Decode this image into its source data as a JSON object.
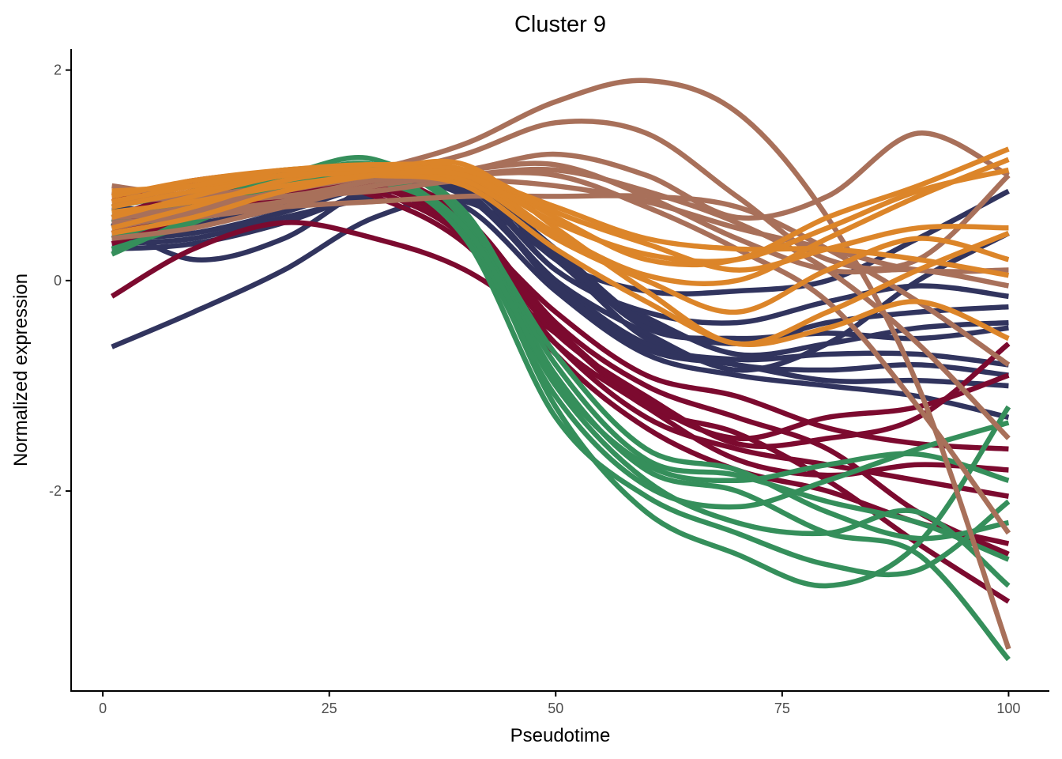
{
  "chart_data": {
    "type": "line",
    "title": "Cluster 9",
    "xlabel": "Pseudotime",
    "ylabel": "Normalized expression",
    "xlim": [
      -3.5,
      104.5
    ],
    "ylim": [
      -3.9,
      2.2
    ],
    "x_ticks": [
      0,
      25,
      50,
      75,
      100
    ],
    "y_ticks": [
      2,
      0,
      -2
    ],
    "x_tick_labels": [
      "0",
      "25",
      "50",
      "75",
      "100"
    ],
    "y_tick_labels": [
      "2",
      "0",
      "-2"
    ],
    "grid": false,
    "legend": "none",
    "x": [
      1,
      10,
      20,
      30,
      40,
      50,
      60,
      70,
      80,
      90,
      100
    ],
    "palette": {
      "blue": "#31345e",
      "crimson": "#7c0a2f",
      "green": "#358f5b",
      "brown": "#a8705a",
      "orange": "#dc8529"
    },
    "series": [
      {
        "name": "blue-1",
        "color": "#31345e",
        "values": [
          -0.63,
          -0.3,
          0.1,
          0.6,
          0.75,
          0.2,
          -0.55,
          -0.8,
          -0.85,
          -0.8,
          -0.9
        ]
      },
      {
        "name": "blue-2",
        "color": "#31345e",
        "values": [
          0.55,
          0.2,
          0.4,
          0.9,
          0.9,
          0.1,
          -0.35,
          -0.7,
          -0.6,
          -0.45,
          -0.4
        ]
      },
      {
        "name": "blue-3",
        "color": "#31345e",
        "values": [
          0.45,
          0.5,
          0.8,
          1.0,
          0.95,
          0.3,
          -0.4,
          -0.6,
          -0.4,
          -0.3,
          -0.25
        ]
      },
      {
        "name": "blue-4",
        "color": "#31345e",
        "values": [
          0.6,
          0.55,
          0.7,
          1.05,
          0.85,
          0.0,
          -0.6,
          -0.75,
          -0.7,
          -0.7,
          -0.8
        ]
      },
      {
        "name": "blue-5",
        "color": "#31345e",
        "values": [
          0.35,
          0.4,
          0.6,
          0.8,
          1.0,
          0.2,
          -0.1,
          -0.1,
          0.0,
          0.4,
          0.85
        ]
      },
      {
        "name": "blue-6",
        "color": "#31345e",
        "values": [
          0.5,
          0.6,
          0.75,
          0.85,
          0.7,
          -0.1,
          -0.7,
          -0.9,
          -1.0,
          -1.1,
          -1.3
        ]
      },
      {
        "name": "blue-7",
        "color": "#31345e",
        "values": [
          0.7,
          0.65,
          0.8,
          0.95,
          0.8,
          0.0,
          -0.5,
          -0.85,
          -0.6,
          0.0,
          0.45
        ]
      },
      {
        "name": "blue-8",
        "color": "#31345e",
        "values": [
          0.4,
          0.45,
          0.65,
          0.9,
          0.9,
          0.25,
          -0.45,
          -0.55,
          -0.5,
          -0.55,
          -0.45
        ]
      },
      {
        "name": "blue-9",
        "color": "#31345e",
        "values": [
          0.3,
          0.35,
          0.55,
          0.85,
          0.95,
          0.1,
          -0.3,
          -0.4,
          -0.2,
          -0.05,
          -0.15
        ]
      },
      {
        "name": "blue-10",
        "color": "#31345e",
        "values": [
          0.55,
          0.6,
          0.7,
          0.9,
          0.85,
          -0.05,
          -0.65,
          -0.8,
          -0.95,
          -0.95,
          -1.0
        ]
      },
      {
        "name": "crimson-1",
        "color": "#7c0a2f",
        "values": [
          -0.15,
          0.3,
          0.55,
          0.4,
          0.1,
          -0.5,
          -1.2,
          -1.45,
          -1.9,
          -2.5,
          -3.05
        ]
      },
      {
        "name": "crimson-2",
        "color": "#7c0a2f",
        "values": [
          0.8,
          0.9,
          1.0,
          0.95,
          0.5,
          -0.5,
          -1.1,
          -1.55,
          -1.5,
          -1.3,
          -0.6
        ]
      },
      {
        "name": "crimson-3",
        "color": "#7c0a2f",
        "values": [
          0.6,
          0.85,
          0.95,
          0.9,
          0.45,
          -0.6,
          -1.3,
          -1.6,
          -1.75,
          -1.9,
          -2.05
        ]
      },
      {
        "name": "crimson-4",
        "color": "#7c0a2f",
        "values": [
          0.45,
          0.7,
          0.9,
          1.0,
          0.6,
          -0.4,
          -1.0,
          -1.3,
          -1.6,
          -2.2,
          -2.6
        ]
      },
      {
        "name": "crimson-5",
        "color": "#7c0a2f",
        "values": [
          0.7,
          0.85,
          1.0,
          0.85,
          0.4,
          -0.7,
          -1.4,
          -1.8,
          -2.0,
          -2.3,
          -2.5
        ]
      },
      {
        "name": "crimson-6",
        "color": "#7c0a2f",
        "values": [
          0.35,
          0.6,
          0.8,
          0.9,
          0.5,
          -0.3,
          -0.9,
          -1.1,
          -1.4,
          -1.55,
          -1.6
        ]
      },
      {
        "name": "crimson-7",
        "color": "#7c0a2f",
        "values": [
          0.75,
          0.95,
          1.0,
          0.8,
          0.35,
          -0.6,
          -1.2,
          -1.7,
          -1.85,
          -1.75,
          -1.8
        ]
      },
      {
        "name": "crimson-8",
        "color": "#7c0a2f",
        "values": [
          0.5,
          0.75,
          0.95,
          0.95,
          0.55,
          -0.45,
          -1.15,
          -1.5,
          -1.3,
          -1.2,
          -0.9
        ]
      },
      {
        "name": "green-1",
        "color": "#358f5b",
        "values": [
          0.25,
          0.6,
          0.95,
          1.1,
          0.6,
          -0.9,
          -1.8,
          -2.0,
          -2.4,
          -2.6,
          -3.6
        ]
      },
      {
        "name": "green-2",
        "color": "#358f5b",
        "values": [
          0.55,
          0.8,
          1.0,
          1.15,
          0.55,
          -1.2,
          -2.2,
          -2.6,
          -2.9,
          -2.5,
          -1.2
        ]
      },
      {
        "name": "green-3",
        "color": "#358f5b",
        "values": [
          0.7,
          0.85,
          1.05,
          1.0,
          0.5,
          -1.0,
          -1.9,
          -2.3,
          -2.4,
          -2.2,
          -2.9
        ]
      },
      {
        "name": "green-4",
        "color": "#358f5b",
        "values": [
          0.4,
          0.65,
          0.95,
          1.1,
          0.65,
          -0.8,
          -1.7,
          -1.85,
          -2.1,
          -2.3,
          -2.65
        ]
      },
      {
        "name": "green-5",
        "color": "#358f5b",
        "values": [
          0.6,
          0.8,
          1.0,
          1.05,
          0.45,
          -1.1,
          -1.95,
          -2.15,
          -1.9,
          -1.6,
          -1.35
        ]
      },
      {
        "name": "green-6",
        "color": "#358f5b",
        "values": [
          0.3,
          0.55,
          0.9,
          1.0,
          0.4,
          -1.3,
          -2.05,
          -2.4,
          -2.7,
          -2.75,
          -2.1
        ]
      },
      {
        "name": "green-7",
        "color": "#358f5b",
        "values": [
          0.65,
          0.75,
          0.95,
          0.95,
          0.5,
          -0.95,
          -1.75,
          -1.9,
          -1.75,
          -1.65,
          -1.9
        ]
      },
      {
        "name": "green-8",
        "color": "#358f5b",
        "values": [
          0.5,
          0.7,
          0.9,
          1.1,
          0.6,
          -0.7,
          -1.6,
          -1.8,
          -2.2,
          -2.45,
          -2.3
        ]
      },
      {
        "name": "brown-1",
        "color": "#a8705a",
        "values": [
          0.6,
          0.7,
          0.85,
          1.05,
          1.3,
          1.7,
          1.9,
          1.6,
          0.6,
          -1.0,
          -3.5
        ]
      },
      {
        "name": "brown-2",
        "color": "#a8705a",
        "values": [
          0.5,
          0.65,
          0.85,
          1.0,
          1.2,
          1.5,
          1.4,
          0.8,
          0.2,
          0.2,
          1.0
        ]
      },
      {
        "name": "brown-3",
        "color": "#a8705a",
        "values": [
          0.75,
          0.8,
          0.9,
          1.0,
          1.05,
          1.2,
          1.0,
          0.6,
          0.8,
          1.4,
          1.0
        ]
      },
      {
        "name": "brown-4",
        "color": "#a8705a",
        "values": [
          0.9,
          0.8,
          0.8,
          0.95,
          1.05,
          1.1,
          0.8,
          0.4,
          0.1,
          0.1,
          -0.05
        ]
      },
      {
        "name": "brown-5",
        "color": "#a8705a",
        "values": [
          0.4,
          0.5,
          0.7,
          0.9,
          1.0,
          1.0,
          0.7,
          0.3,
          -0.2,
          -1.2,
          -2.4
        ]
      },
      {
        "name": "brown-6",
        "color": "#a8705a",
        "values": [
          0.85,
          0.75,
          0.8,
          0.85,
          0.95,
          0.9,
          0.75,
          0.5,
          0.3,
          0.1,
          0.1
        ]
      },
      {
        "name": "brown-7",
        "color": "#a8705a",
        "values": [
          0.6,
          0.65,
          0.75,
          0.9,
          1.0,
          1.05,
          0.85,
          0.55,
          0.1,
          -0.6,
          -1.5
        ]
      },
      {
        "name": "brown-8",
        "color": "#a8705a",
        "values": [
          0.55,
          0.6,
          0.7,
          0.75,
          0.8,
          0.8,
          0.8,
          0.7,
          0.3,
          -0.2,
          -0.8
        ]
      },
      {
        "name": "orange-1",
        "color": "#dc8529",
        "values": [
          0.8,
          0.95,
          1.05,
          1.1,
          1.05,
          0.6,
          0.2,
          0.2,
          0.6,
          0.9,
          1.25
        ]
      },
      {
        "name": "orange-2",
        "color": "#dc8529",
        "values": [
          0.6,
          0.8,
          1.0,
          1.05,
          1.1,
          0.5,
          -0.1,
          -0.6,
          -0.3,
          0.1,
          0.45
        ]
      },
      {
        "name": "orange-3",
        "color": "#dc8529",
        "values": [
          0.7,
          0.85,
          1.0,
          1.1,
          1.0,
          0.7,
          0.4,
          0.3,
          0.3,
          0.2,
          0.05
        ]
      },
      {
        "name": "orange-4",
        "color": "#dc8529",
        "values": [
          0.5,
          0.7,
          0.95,
          1.05,
          1.0,
          0.45,
          0.05,
          0.0,
          0.4,
          0.8,
          1.15
        ]
      },
      {
        "name": "orange-5",
        "color": "#dc8529",
        "values": [
          0.85,
          0.9,
          1.0,
          1.0,
          0.9,
          0.3,
          -0.2,
          -0.6,
          -0.45,
          -0.2,
          -0.55
        ]
      },
      {
        "name": "orange-6",
        "color": "#dc8529",
        "values": [
          0.45,
          0.6,
          0.85,
          1.0,
          1.05,
          0.65,
          0.35,
          0.1,
          0.3,
          0.5,
          0.5
        ]
      },
      {
        "name": "orange-7",
        "color": "#dc8529",
        "values": [
          0.75,
          0.9,
          1.05,
          1.05,
          0.95,
          0.4,
          0.0,
          -0.3,
          0.1,
          0.4,
          0.2
        ]
      },
      {
        "name": "orange-8",
        "color": "#dc8529",
        "values": [
          0.65,
          0.75,
          0.9,
          1.0,
          1.0,
          0.55,
          0.25,
          0.2,
          0.5,
          0.85,
          1.05
        ]
      }
    ]
  }
}
